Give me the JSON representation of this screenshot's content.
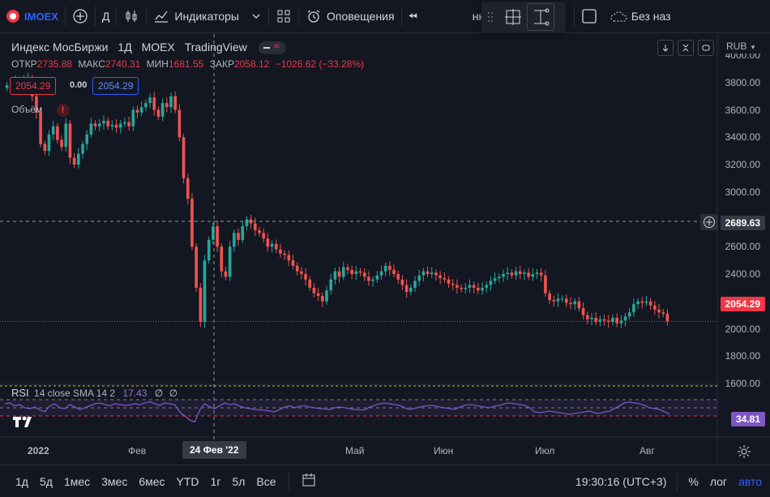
{
  "topbar": {
    "symbol": "IMOEX",
    "interval": "Д",
    "indicators_label": "Индикаторы",
    "alerts_label": "Оповещения",
    "replay_label_partial": "нка",
    "save_label_partial": "Без наз"
  },
  "legend": {
    "title": "Индекс МосБиржи",
    "interval": "1Д",
    "exchange": "MOEX",
    "source": "TradingView",
    "open_key": "ОТКР",
    "open_val": "2735.88",
    "high_key": "МАКС",
    "high_val": "2740.31",
    "low_key": "МИН",
    "low_val": "1681.55",
    "close_key": "ЗАКР",
    "close_val": "2058.12",
    "change": "−1026.62 (−33.28%)",
    "sell_price": "2054.29",
    "spread": "0.00",
    "buy_price": "2054.29",
    "volume_label": "Объём"
  },
  "rsi": {
    "label": "RSI",
    "params": "14 close SMA 14 2",
    "value": "17.43",
    "empty1": "∅",
    "empty2": "∅",
    "axis_value": "34.81"
  },
  "price_axis": {
    "currency": "RUB",
    "ticks": [
      "4000.00",
      "3800.00",
      "3600.00",
      "3400.00",
      "3200.00",
      "3000.00",
      "2800.00",
      "2600.00",
      "2400.00",
      "2200.00",
      "2000.00",
      "1800.00",
      "1600.00"
    ],
    "crosshair_price": "2689.63",
    "last_price": "2054.29"
  },
  "time_axis": {
    "labels": [
      {
        "text": "2022"
      },
      {
        "text": "Фев"
      },
      {
        "text": "Май"
      },
      {
        "text": "Июн"
      },
      {
        "text": "Июл"
      },
      {
        "text": "Авг"
      }
    ],
    "crosshair_date": "24 Фев '22"
  },
  "bottombar": {
    "ranges": [
      "1д",
      "5д",
      "1мес",
      "3мес",
      "6мес",
      "YTD",
      "1г",
      "5л",
      "Все"
    ],
    "clock": "19:30:16 (UTC+3)",
    "percent": "%",
    "log": "лог",
    "auto": "авто"
  },
  "colors": {
    "bg": "#131722",
    "up": "#26a69a",
    "down": "#ef5350",
    "rsi_line": "#7e57c2",
    "accent": "#2962ff"
  },
  "chart_data": {
    "type": "candlestick",
    "ylim": [
      1600,
      4000
    ],
    "last_close": 2054.29,
    "closes": [
      3780,
      3800,
      3810,
      3750,
      3820,
      3830,
      3700,
      3580,
      3350,
      3300,
      3420,
      3480,
      3380,
      3330,
      3500,
      3250,
      3200,
      3280,
      3350,
      3420,
      3500,
      3480,
      3500,
      3520,
      3480,
      3490,
      3470,
      3500,
      3510,
      3480,
      3600,
      3580,
      3620,
      3650,
      3690,
      3600,
      3550,
      3650,
      3620,
      3700,
      3600,
      3400,
      3100,
      2950,
      2600,
      2300,
      2050,
      2500,
      2650,
      2750,
      2600,
      2420,
      2380,
      2600,
      2700,
      2650,
      2750,
      2800,
      2770,
      2720,
      2700,
      2660,
      2600,
      2620,
      2580,
      2550,
      2540,
      2500,
      2460,
      2420,
      2400,
      2360,
      2300,
      2260,
      2240,
      2200,
      2280,
      2360,
      2420,
      2380,
      2450,
      2430,
      2400,
      2420,
      2410,
      2380,
      2350,
      2360,
      2390,
      2420,
      2460,
      2430,
      2400,
      2360,
      2320,
      2270,
      2300,
      2350,
      2390,
      2420,
      2400,
      2410,
      2390,
      2370,
      2360,
      2330,
      2320,
      2300,
      2290,
      2300,
      2320,
      2300,
      2280,
      2300,
      2320,
      2350,
      2370,
      2380,
      2400,
      2410,
      2390,
      2420,
      2400,
      2410,
      2380,
      2400,
      2410,
      2390,
      2260,
      2210,
      2200,
      2220,
      2220,
      2190,
      2180,
      2200,
      2150,
      2100,
      2070,
      2080,
      2050,
      2070,
      2060,
      2050,
      2080,
      2040,
      2060,
      2090,
      2120,
      2180,
      2200,
      2190,
      2200,
      2170,
      2140,
      2120,
      2110,
      2054
    ],
    "rsi_values": [
      60,
      62,
      55,
      58,
      50,
      48,
      52,
      45,
      40,
      55,
      60,
      50,
      48,
      58,
      52,
      46,
      50,
      55,
      60,
      62,
      58,
      55,
      60,
      58,
      56,
      57,
      60,
      58,
      62,
      65,
      60,
      56,
      62,
      60,
      58,
      40,
      30,
      20,
      15,
      45,
      60,
      52,
      48,
      55,
      62,
      58,
      60,
      54,
      50,
      48,
      46,
      45,
      44,
      42,
      40,
      46,
      52,
      55,
      50,
      54,
      55,
      52,
      50,
      48,
      47,
      46,
      50,
      52,
      50,
      48,
      46,
      45,
      45,
      52,
      56,
      60,
      62,
      60,
      58,
      56,
      50,
      46,
      48,
      52,
      54,
      56,
      55,
      52,
      50,
      48,
      46,
      52,
      56,
      58,
      56,
      54,
      52,
      50,
      54,
      56,
      60,
      62,
      60,
      58,
      56,
      50,
      40,
      38,
      40,
      42,
      40,
      38,
      36,
      34,
      36,
      38,
      40,
      42,
      38,
      36,
      40,
      42,
      48,
      55,
      62,
      64,
      62,
      60,
      56,
      50,
      48,
      46,
      40,
      35
    ]
  }
}
